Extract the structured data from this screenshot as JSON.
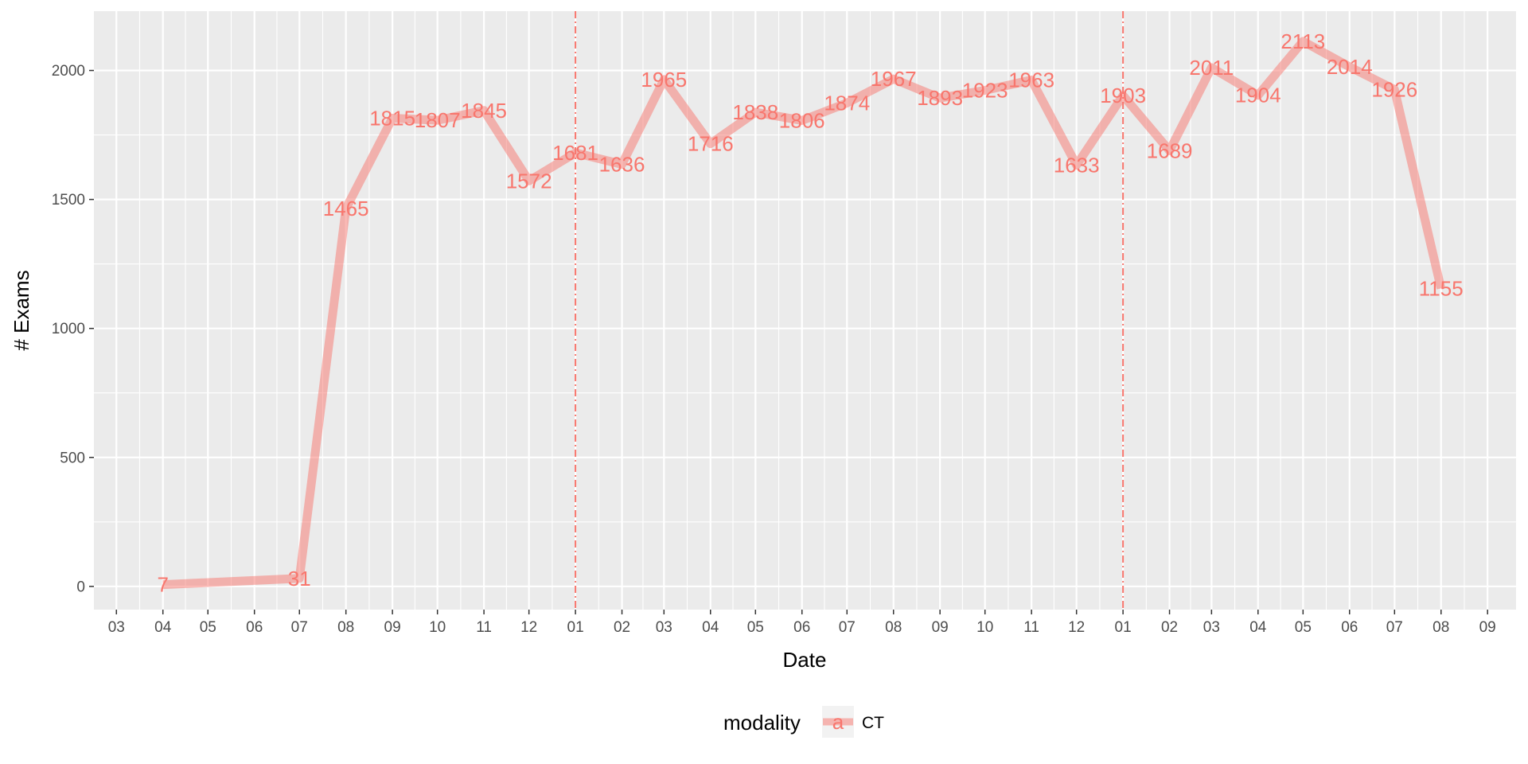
{
  "chart_data": {
    "type": "line",
    "xlabel": "Date",
    "ylabel": "# Exams",
    "ylim": [
      -90,
      2230
    ],
    "y_ticks": [
      0,
      500,
      1000,
      1500,
      2000
    ],
    "x_range": [
      "2016-02-15",
      "2018-09-20"
    ],
    "x_tick_dates": [
      "2016-03-01",
      "2016-04-01",
      "2016-05-01",
      "2016-06-01",
      "2016-07-01",
      "2016-08-01",
      "2016-09-01",
      "2016-10-01",
      "2016-11-01",
      "2016-12-01",
      "2017-01-01",
      "2017-02-01",
      "2017-03-01",
      "2017-04-01",
      "2017-05-01",
      "2017-06-01",
      "2017-07-01",
      "2017-08-01",
      "2017-09-01",
      "2017-10-01",
      "2017-11-01",
      "2017-12-01",
      "2018-01-01",
      "2018-02-01",
      "2018-03-01",
      "2018-04-01",
      "2018-05-01",
      "2018-06-01",
      "2018-07-01",
      "2018-08-01",
      "2018-09-01"
    ],
    "x_tick_labels": [
      "03",
      "04",
      "05",
      "06",
      "07",
      "08",
      "09",
      "10",
      "11",
      "12",
      "01",
      "02",
      "03",
      "04",
      "05",
      "06",
      "07",
      "08",
      "09",
      "10",
      "11",
      "12",
      "01",
      "02",
      "03",
      "04",
      "05",
      "06",
      "07",
      "08",
      "09"
    ],
    "vlines": [
      "2017-01-01",
      "2018-01-01"
    ],
    "grid": true,
    "legend_position": "bottom",
    "legend_title": "modality",
    "series": [
      {
        "name": "CT",
        "color": "#F8766D",
        "x": [
          "2016-04-01",
          "2016-07-01",
          "2016-08-01",
          "2016-09-01",
          "2016-10-01",
          "2016-11-01",
          "2016-12-01",
          "2017-01-01",
          "2017-02-01",
          "2017-03-01",
          "2017-04-01",
          "2017-05-01",
          "2017-06-01",
          "2017-07-01",
          "2017-08-01",
          "2017-09-01",
          "2017-10-01",
          "2017-11-01",
          "2017-12-01",
          "2018-01-01",
          "2018-02-01",
          "2018-03-01",
          "2018-04-01",
          "2018-05-01",
          "2018-06-01",
          "2018-07-01",
          "2018-08-01"
        ],
        "y": [
          7,
          31,
          1465,
          1815,
          1807,
          1845,
          1572,
          1681,
          1636,
          1965,
          1716,
          1838,
          1806,
          1874,
          1967,
          1893,
          1923,
          1963,
          1633,
          1903,
          1689,
          2011,
          1904,
          2113,
          2014,
          1926,
          1155
        ]
      }
    ]
  }
}
